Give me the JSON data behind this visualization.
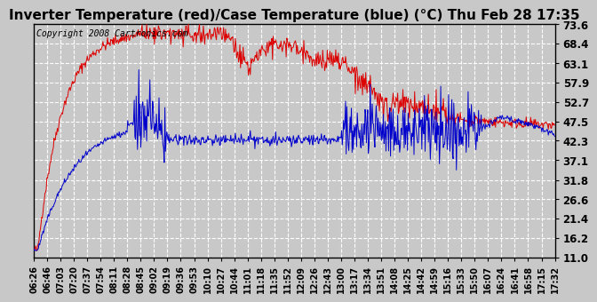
{
  "title": "Inverter Temperature (red)/Case Temperature (blue) (°C) Thu Feb 28 17:35",
  "copyright": "Copyright 2008 Cartronics.com",
  "yticks": [
    11.0,
    16.2,
    21.4,
    26.6,
    31.8,
    37.1,
    42.3,
    47.5,
    52.7,
    57.9,
    63.1,
    68.4,
    73.6
  ],
  "ymin": 11.0,
  "ymax": 73.6,
  "background_color": "#c8c8c8",
  "plot_bg_color": "#c8c8c8",
  "grid_color": "#ffffff",
  "red_color": "#dd0000",
  "blue_color": "#0000cc",
  "title_fontsize": 11,
  "copyright_fontsize": 7,
  "xtick_labels": [
    "06:26",
    "06:46",
    "07:03",
    "07:20",
    "07:37",
    "07:54",
    "08:11",
    "08:28",
    "08:45",
    "09:02",
    "09:19",
    "09:36",
    "09:53",
    "10:10",
    "10:27",
    "10:44",
    "11:01",
    "11:18",
    "11:35",
    "11:52",
    "12:09",
    "12:26",
    "12:43",
    "13:00",
    "13:17",
    "13:34",
    "13:51",
    "14:08",
    "14:25",
    "14:42",
    "14:59",
    "15:16",
    "15:33",
    "15:50",
    "16:07",
    "16:24",
    "16:41",
    "16:58",
    "17:15",
    "17:32"
  ]
}
